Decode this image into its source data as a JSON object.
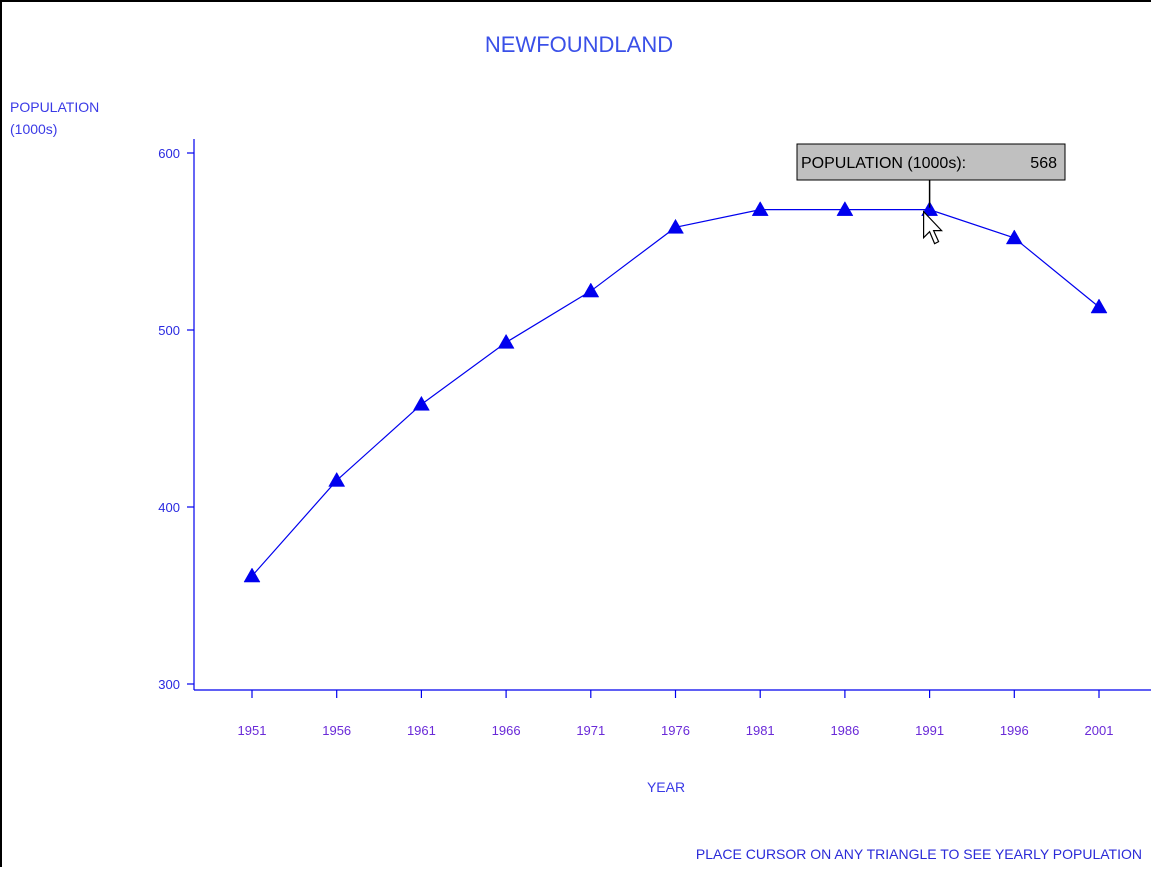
{
  "chart_data": {
    "type": "line",
    "title": "NEWFOUNDLAND",
    "ylabel_line1": "POPULATION",
    "ylabel_line2": "(1000s)",
    "xlabel": "YEAR",
    "categories": [
      "1951",
      "1956",
      "1961",
      "1966",
      "1971",
      "1976",
      "1981",
      "1986",
      "1991",
      "1996",
      "2001"
    ],
    "series": [
      {
        "values": [
          361,
          415,
          458,
          493,
          522,
          558,
          568,
          568,
          568,
          552,
          513
        ]
      }
    ],
    "ylim": [
      300,
      600
    ],
    "yticks": [
      300,
      400,
      500,
      600
    ],
    "grid": false,
    "marker": "triangle",
    "color": "#0000ee"
  },
  "tooltip": {
    "label": "POPULATION (1000s):",
    "value": "568",
    "target_index": 8
  },
  "footer_text": "PLACE CURSOR ON ANY TRIANGLE TO SEE YEARLY POPULATION"
}
